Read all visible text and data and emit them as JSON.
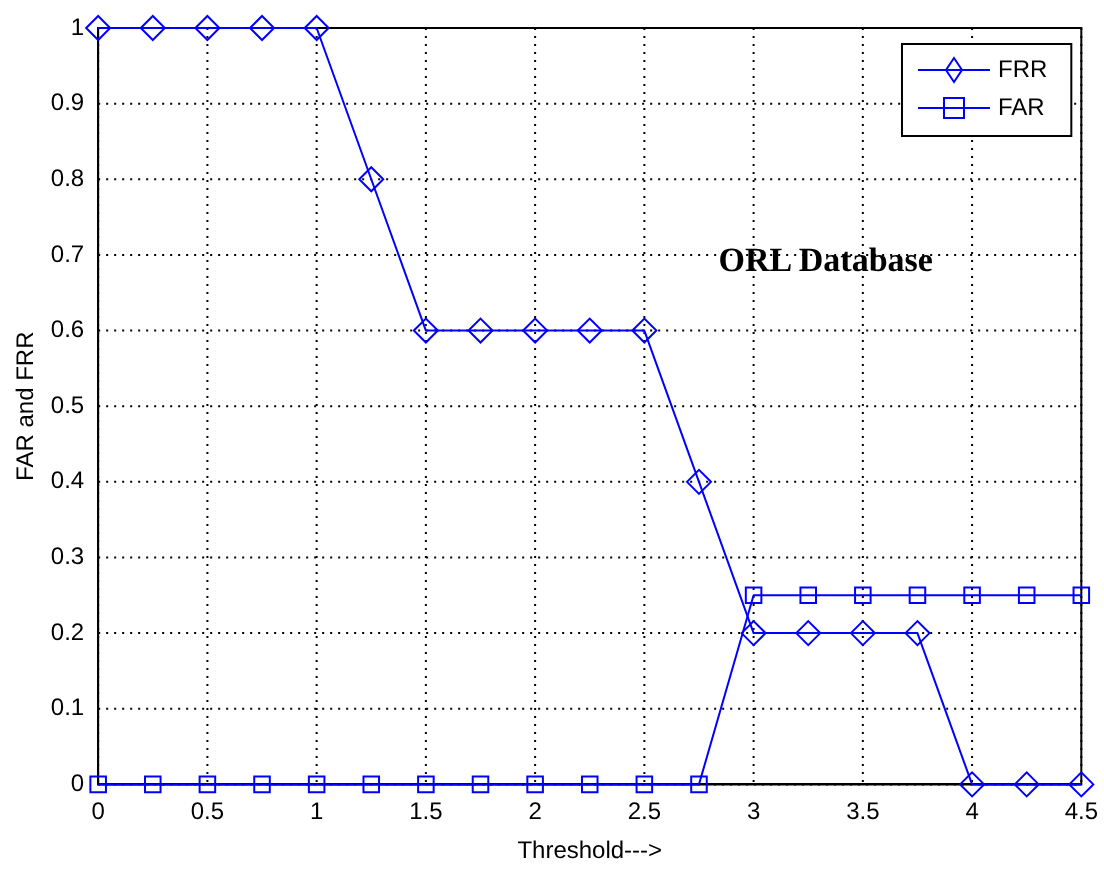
{
  "chart_data": {
    "type": "line",
    "xlabel": "Threshold--->",
    "ylabel": "FAR and FRR",
    "annotations": [
      "ORL Database"
    ],
    "x": [
      0,
      0.25,
      0.5,
      0.75,
      1,
      1.25,
      1.5,
      1.75,
      2,
      2.25,
      2.5,
      2.75,
      3,
      3.25,
      3.5,
      3.75,
      4,
      4.25,
      4.5
    ],
    "series": [
      {
        "name": "FRR",
        "color": "#0000ff",
        "marker": "diamond",
        "values": [
          1,
          1,
          1,
          1,
          1,
          0.8,
          0.6,
          0.6,
          0.6,
          0.6,
          0.6,
          0.4,
          0.2,
          0.2,
          0.2,
          0.2,
          0,
          0,
          0
        ]
      },
      {
        "name": "FAR",
        "color": "#0000ff",
        "marker": "square",
        "values": [
          0,
          0,
          0,
          0,
          0,
          0,
          0,
          0,
          0,
          0,
          0,
          0,
          0.25,
          0.25,
          0.25,
          0.25,
          0.25,
          0.25,
          0.25
        ]
      }
    ],
    "xlim": [
      0,
      4.5
    ],
    "xticks": [
      0,
      0.5,
      1,
      1.5,
      2,
      2.5,
      3,
      3.5,
      4,
      4.5
    ],
    "ylim": [
      0,
      1
    ],
    "yticks": [
      0,
      0.1,
      0.2,
      0.3,
      0.4,
      0.5,
      0.6,
      0.7,
      0.8,
      0.9,
      1
    ],
    "grid": true,
    "legend": "top right",
    "line_style": "solid"
  }
}
